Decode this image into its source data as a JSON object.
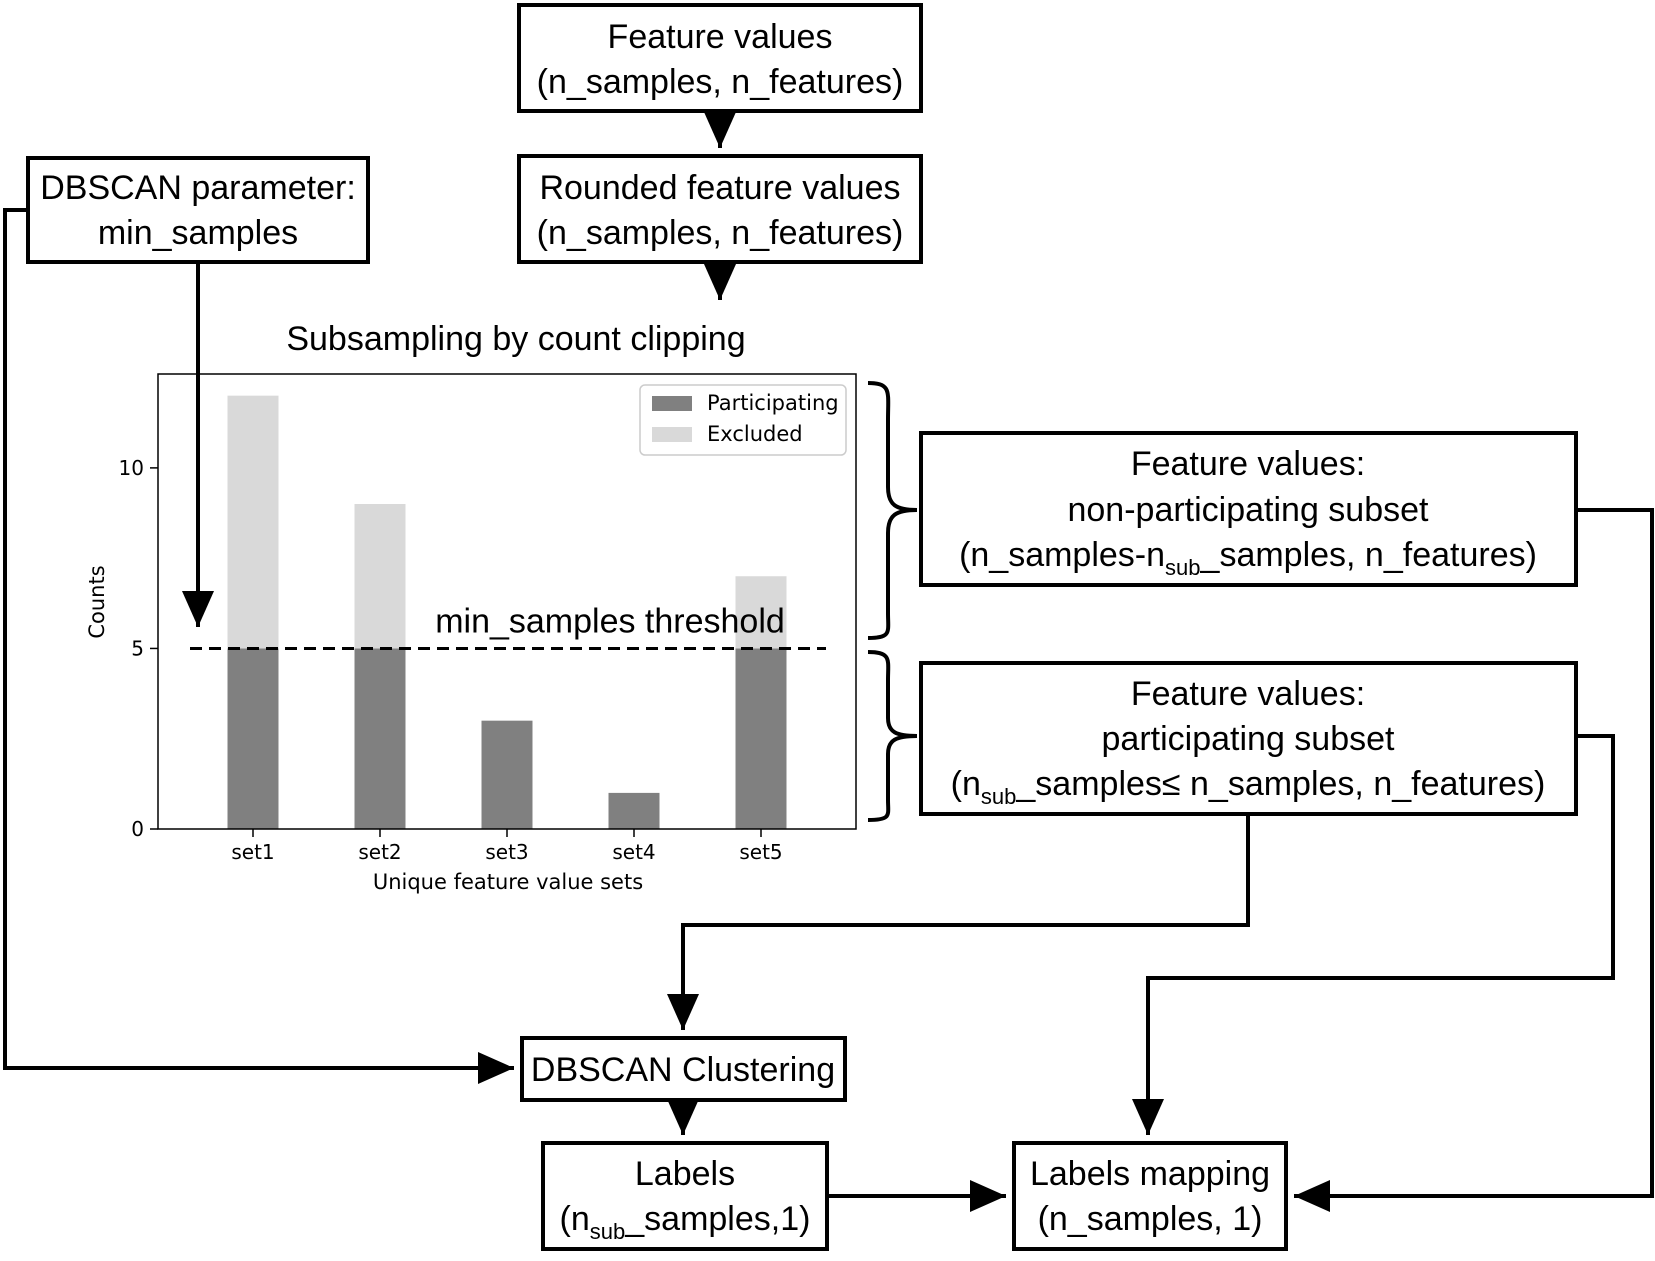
{
  "nodes": {
    "feature_values": {
      "line1": "Feature values",
      "line2": "(n_samples, n_features)"
    },
    "rounded": {
      "line1": "Rounded feature values",
      "line2": "(n_samples, n_features)"
    },
    "dbscan_param": {
      "line1": "DBSCAN parameter:",
      "line2": "min_samples"
    },
    "non_participating": {
      "line1": "Feature values:",
      "line2": "non-participating subset",
      "line3_a": "(n_samples-n",
      "line3_sub": "sub",
      "line3_b": "_samples, n_features)"
    },
    "participating": {
      "line1": "Feature values:",
      "line2": "participating subset",
      "line3_a": "(n",
      "line3_sub": "sub",
      "line3_b": "_samples≤ n_samples, n_features)"
    },
    "dbscan_clustering": {
      "line1": "DBSCAN Clustering"
    },
    "labels": {
      "line1": "Labels",
      "line2_a": "(n",
      "line2_sub": "sub",
      "line2_b": "_samples,1)"
    },
    "labels_mapping": {
      "line1": "Labels mapping",
      "line2": "(n_samples, 1)"
    }
  },
  "chart_data": {
    "type": "bar",
    "title": "Subsampling by count clipping",
    "xlabel": "Unique feature value sets",
    "ylabel": "Counts",
    "categories": [
      "set1",
      "set2",
      "set3",
      "set4",
      "set5"
    ],
    "series": [
      {
        "name": "Participating",
        "values": [
          5,
          5,
          3,
          1,
          5
        ],
        "color": "#808080"
      },
      {
        "name": "Excluded",
        "values": [
          7,
          4,
          0,
          0,
          2
        ],
        "color": "#d9d9d9"
      }
    ],
    "stacked": true,
    "ylim": [
      0,
      12.6
    ],
    "yticks": [
      0,
      5,
      10
    ],
    "threshold": {
      "value": 5,
      "label": "min_samples threshold",
      "style": "dashed"
    },
    "legend_placement": "top-right",
    "grid": false
  }
}
